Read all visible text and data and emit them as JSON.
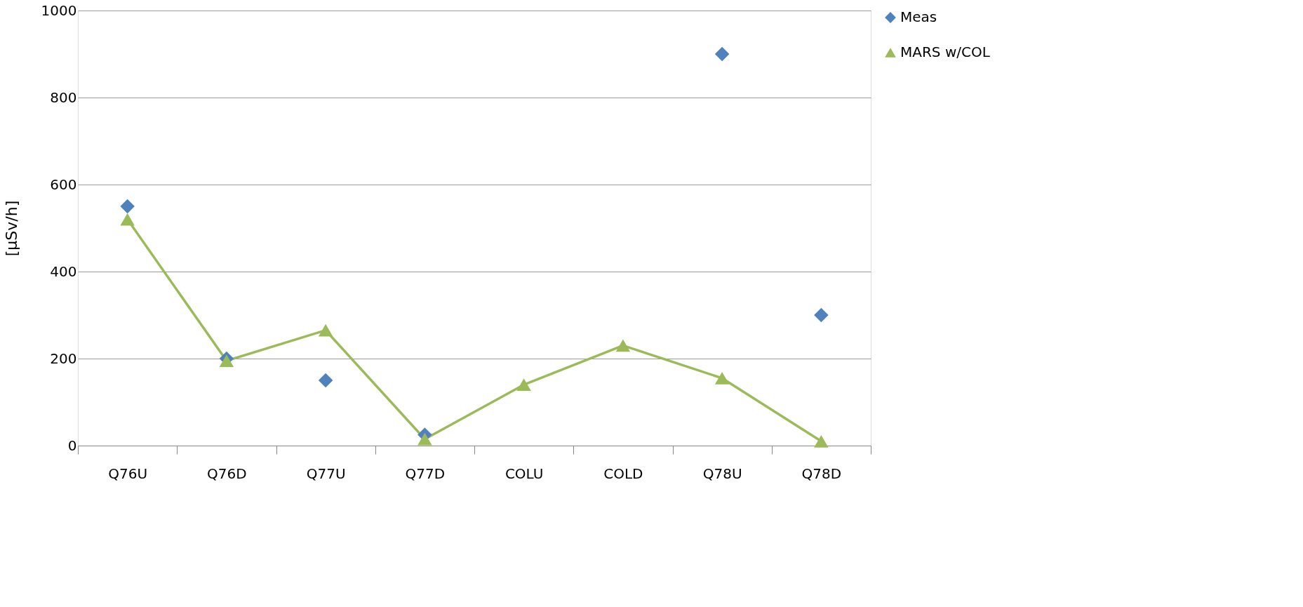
{
  "chart_data": {
    "type": "line",
    "ylabel": "[μSv/h]",
    "categories": [
      "Q76U",
      "Q76D",
      "Q77U",
      "Q77D",
      "COLU",
      "COLD",
      "Q78U",
      "Q78D"
    ],
    "series": [
      {
        "name": "Meas",
        "type": "scatter",
        "marker": "diamond",
        "color": "#4f81bd",
        "values": [
          550,
          200,
          150,
          25,
          null,
          null,
          900,
          300
        ]
      },
      {
        "name": "MARS w/COL",
        "marker": "triangle",
        "line_style": "solid",
        "color": "#9bbb59",
        "values": [
          520,
          195,
          265,
          15,
          140,
          230,
          155,
          10
        ]
      }
    ],
    "ylim": [
      0,
      1000
    ],
    "yticks": [
      0,
      200,
      400,
      600,
      800,
      1000
    ],
    "grid": "y",
    "legend": "right"
  }
}
